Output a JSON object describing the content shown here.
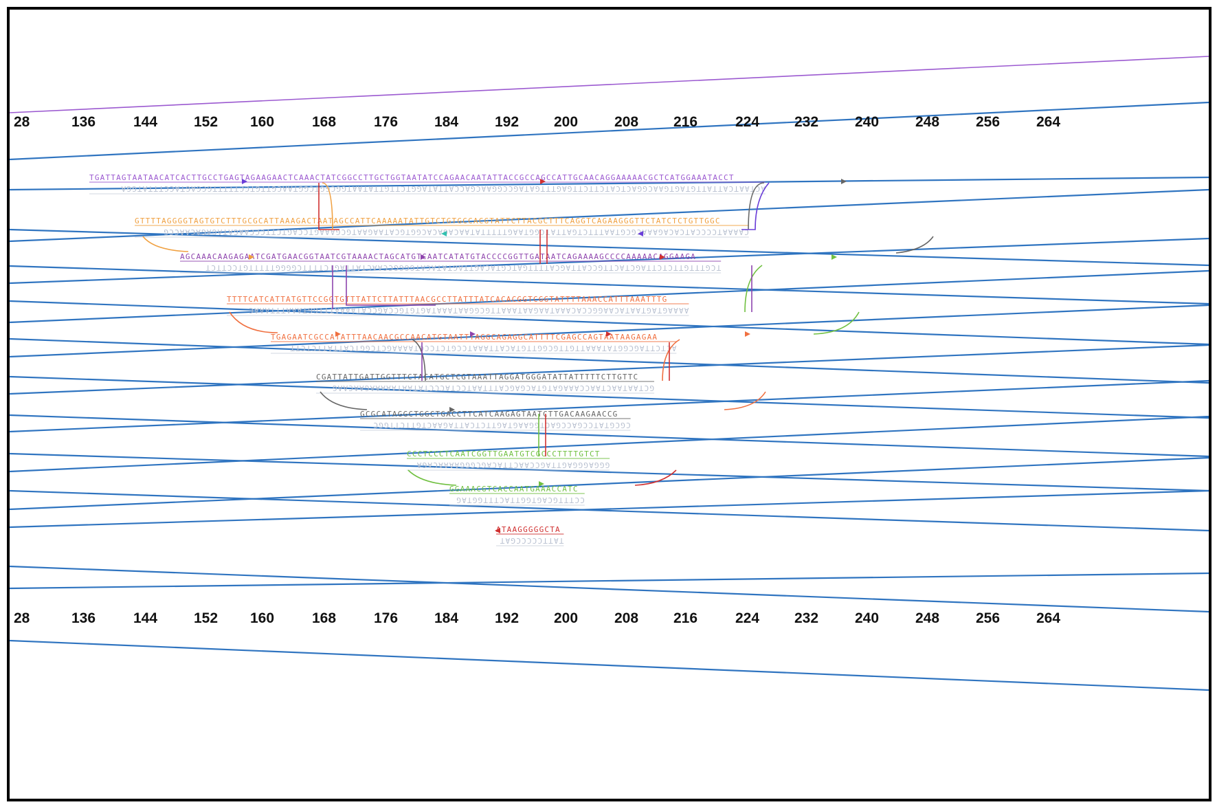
{
  "ruler": {
    "ticks": [
      "28",
      "136",
      "144",
      "152",
      "160",
      "168",
      "176",
      "184",
      "192",
      "200",
      "208",
      "216",
      "224",
      "232",
      "240",
      "248",
      "256",
      "264"
    ]
  },
  "colors": {
    "scaffold": "#2f74c0",
    "top_strand": "#9b59d0",
    "complement": "#b8c0d0",
    "orange": "#f0a040",
    "red": "#d03030",
    "purple": "#8e44ad",
    "violet": "#6a3ed8",
    "teal": "#33c0b0",
    "green": "#70c040",
    "gray": "#666666",
    "salmon": "#f07040"
  },
  "strands": [
    {
      "top": "TGATTAGTAATAACATCACTTGCCTGAGTAGAAGAACTCAAACTATCGGCCTTGCTGGTAATATCCAGAACAATATTACCGCCAGCCATTGCAACAGGAAAAACGCTCATGGAAATACCT",
      "bottom": "ACTAATCATTATTGTAGTGAACGGACTCATCTTCTTGAGTTTGATAGCCGGAACGACCATTATAGGTCTTGTTATAATGGCGGTCGGTAACGTTGTCCTTTTTGCGAGTACCTTTATGGA"
    },
    {
      "top": "GTTTTAGGGGTAGTGTCTTTGCGCATTAAAGACTAATAGCCATTCAAAAATATTGTCTGTGCCACGTATTCTTACGCTTTCAGGTCAGAAGGGTTCTATCTCTGTTGGC",
      "bottom": "CAAAATCCCCATCACAGAAACGCGTAATTTCTGATTATCGGTAAGTTTTTATAACAGACACGGTGCATAAGAATGCGAAAGTCCAGTCTTCCCAAGATAGAGACAACCG"
    },
    {
      "top": "AGCAAACAAGAGAATCGATGAACGGTAATCGTAAAACTAGCATGTCAATCATATGTACCCCGGTTGATAATCAGAAAAGCCCCAAAAACAGGAAGA",
      "bottom": "TCGTTTGTTCTCTTAGCTACTTGCCATTAGCATTTTGATCGTACAGTTAGTATACATGGGGCCAACTATTAGTCTTTTCGGGGTTTTTGTCCTTCT"
    },
    {
      "top": "TTTTCATCATTATGTTCCGGTGTTTATTCTTATTTAACGCCTTATTTATCACACGGTCGGTATTTTAAACCATTTAAATTTG",
      "bottom": "AAAAGTAGTAATACAAGGCCACAAATAAGAATAAATTGCGGAATAAATAGTGTGCCAGCCATAAAATTTGGTAAATTTAAAC"
    },
    {
      "top": "TGAGAATCGCCATATTTAACAACGCCAACATGTAATTTAGGCAGAGGCATTTTCGAGCCAGTAATAAGAGAA",
      "bottom": "ACTCTTAGCGGTATAAATTGTTGCGGTTGTACATTAAATCCGTCTCCGTAAAAGCTCGGTCATTATTCTCTT"
    },
    {
      "top": "CGATTATTGATTGGTTTCTACATGCTCGTAAATTAGGATGGGATATTATTTTTCTTGTTC",
      "bottom": "GCTAATAACTAACCAAAGATGTACGAGCATTTAATCCTACCCTATAATAAAAAGAACAAG"
    },
    {
      "top": "GCGCATAGGCTGGCTGACCTTCATCAAGAGTAATCTTGACAAGAACCG",
      "bottom": "CGCGTATCCGACCGACTGGAAGTAGTTCTCATTAGAACTGTTCTTGGC"
    },
    {
      "top": "CCCTCCCTCAATCGGTTGAATGTCGCCCTTTTGTCT",
      "bottom": "GGGAGGGAGTTAGCCAACTTACAGCGGGAAAACAGA"
    },
    {
      "top": "GGAAACGTCACCAATGAAACCATC",
      "bottom": "CCTTTGCAGTGGTTACTTTGGTAG"
    },
    {
      "top": "ATAAGGGGGCTA",
      "bottom": "TATTCCCCCGAT"
    }
  ]
}
